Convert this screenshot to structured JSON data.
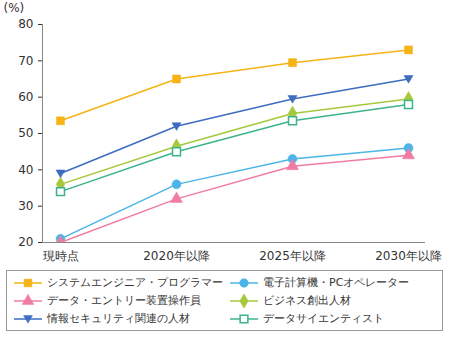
{
  "chart_data": {
    "type": "line",
    "y_label": "(%)",
    "categories": [
      "現時点",
      "2020年以降",
      "2025年以降",
      "2030年以降"
    ],
    "ylim": [
      20,
      80
    ],
    "yticks": [
      20,
      30,
      40,
      50,
      60,
      70,
      80
    ],
    "grid": false,
    "legend": "bottom",
    "series": [
      {
        "name": "システムエンジニア・プログラマー",
        "color": "#f5b315",
        "marker": "square",
        "values": [
          53.5,
          65,
          69.5,
          73
        ]
      },
      {
        "name": "電子計算機・PCオペレーター",
        "color": "#4cb4e6",
        "marker": "circle",
        "values": [
          21,
          36,
          43,
          46
        ]
      },
      {
        "name": "データ・エントリー装置操作員",
        "color": "#f07ca2",
        "marker": "triangle",
        "values": [
          20,
          32,
          41,
          44
        ]
      },
      {
        "name": "ビジネス創出人材",
        "color": "#a5c93a",
        "marker": "diamond",
        "values": [
          36,
          46.5,
          55.5,
          59.5
        ]
      },
      {
        "name": "情報セキュリティ関連の人材",
        "color": "#3d6cc0",
        "marker": "triangle-down",
        "values": [
          39,
          52,
          59.5,
          65
        ]
      },
      {
        "name": "データサイエンティスト",
        "color": "#3cb38c",
        "marker": "square-open",
        "values": [
          34,
          45,
          53.5,
          58
        ]
      }
    ]
  }
}
